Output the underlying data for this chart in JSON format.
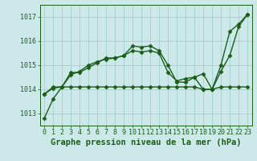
{
  "title": "Graphe pression niveau de la mer (hPa)",
  "hours": [
    0,
    1,
    2,
    3,
    4,
    5,
    6,
    7,
    8,
    9,
    10,
    11,
    12,
    13,
    14,
    15,
    16,
    17,
    18,
    19,
    20,
    21,
    22,
    23
  ],
  "line1": [
    1012.8,
    1013.6,
    1014.1,
    1014.7,
    1014.7,
    1014.9,
    1015.1,
    1015.3,
    1015.3,
    1015.4,
    1015.8,
    1015.75,
    1015.8,
    1015.6,
    1015.0,
    1014.3,
    1014.3,
    1014.5,
    1014.65,
    1014.0,
    1014.75,
    1015.4,
    1016.6,
    1017.1
  ],
  "line2": [
    1013.8,
    1014.1,
    1014.1,
    1014.6,
    1014.75,
    1015.0,
    1015.15,
    1015.25,
    1015.3,
    1015.4,
    1015.6,
    1015.55,
    1015.6,
    1015.5,
    1014.7,
    1014.35,
    1014.45,
    1014.5,
    1014.0,
    1014.0,
    1015.0,
    1016.4,
    1016.7,
    1017.1
  ],
  "line3": [
    1013.8,
    1014.05,
    1014.1,
    1014.1,
    1014.1,
    1014.1,
    1014.1,
    1014.1,
    1014.1,
    1014.1,
    1014.1,
    1014.1,
    1014.1,
    1014.1,
    1014.1,
    1014.1,
    1014.1,
    1014.1,
    1014.0,
    1014.0,
    1014.1,
    1014.1,
    1014.1,
    1014.1
  ],
  "ylim": [
    1012.5,
    1017.5
  ],
  "yticks": [
    1013,
    1014,
    1015,
    1016,
    1017
  ],
  "xticks": [
    0,
    1,
    2,
    3,
    4,
    5,
    6,
    7,
    8,
    9,
    10,
    11,
    12,
    13,
    14,
    15,
    16,
    17,
    18,
    19,
    20,
    21,
    22,
    23
  ],
  "line_color": "#1a5e1a",
  "bg_color": "#cce8e8",
  "grid_color": "#99cccc",
  "marker": "D",
  "marker_size": 2.5,
  "linewidth": 1.0,
  "title_fontsize": 7.5,
  "tick_fontsize": 6.0,
  "title_color": "#1a5e1a"
}
